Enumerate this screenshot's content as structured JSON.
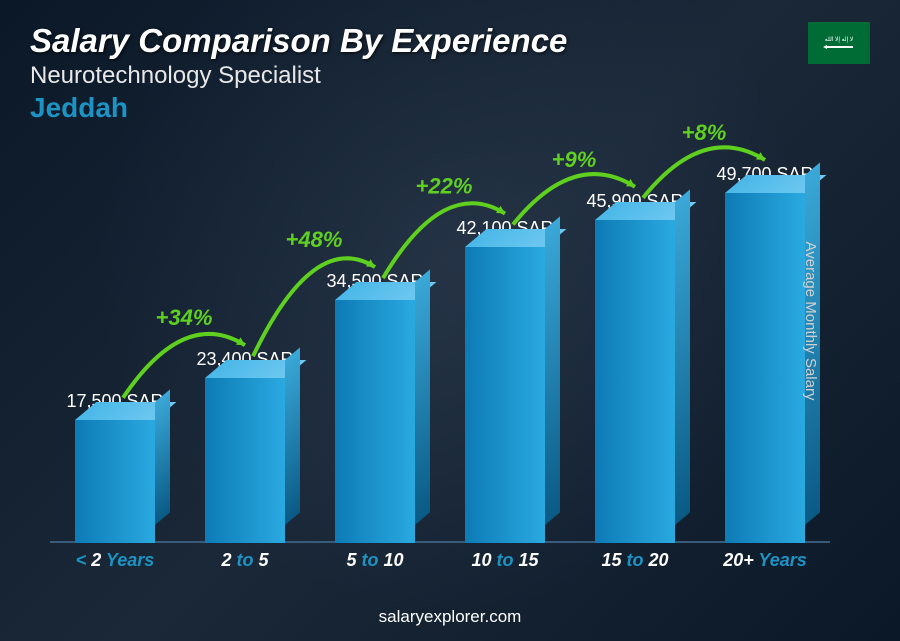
{
  "header": {
    "title": "Salary Comparison By Experience",
    "subtitle": "Neurotechnology Specialist",
    "location": "Jeddah"
  },
  "axis_label": "Average Monthly Salary",
  "footer": "salaryexplorer.com",
  "flag": {
    "country": "Saudi Arabia",
    "bg_color": "#006c35"
  },
  "chart": {
    "type": "bar",
    "currency": "SAR",
    "max_value": 49700,
    "bar_color_light": "#2aa9e0",
    "bar_color_dark": "#0d7bb5",
    "bar_top_color": "#6ec8f0",
    "bar_side_color": "#0a5a85",
    "increase_color": "#5fd01f",
    "label_color": "#1d93c4",
    "value_fontsize": 18,
    "label_fontsize": 18,
    "increase_fontsize": 22,
    "bars": [
      {
        "category_prefix": "< ",
        "category_num": "2",
        "category_suffix": " Years",
        "value": 17500,
        "value_label": "17,500 SAR",
        "increase": null
      },
      {
        "category_prefix": "",
        "category_num": "2",
        "category_mid": " to ",
        "category_num2": "5",
        "category_suffix": "",
        "value": 23400,
        "value_label": "23,400 SAR",
        "increase": "+34%"
      },
      {
        "category_prefix": "",
        "category_num": "5",
        "category_mid": " to ",
        "category_num2": "10",
        "category_suffix": "",
        "value": 34500,
        "value_label": "34,500 SAR",
        "increase": "+48%"
      },
      {
        "category_prefix": "",
        "category_num": "10",
        "category_mid": " to ",
        "category_num2": "15",
        "category_suffix": "",
        "value": 42100,
        "value_label": "42,100 SAR",
        "increase": "+22%"
      },
      {
        "category_prefix": "",
        "category_num": "15",
        "category_mid": " to ",
        "category_num2": "20",
        "category_suffix": "",
        "value": 45900,
        "value_label": "45,900 SAR",
        "increase": "+9%"
      },
      {
        "category_prefix": "",
        "category_num": "20+",
        "category_suffix": " Years",
        "value": 49700,
        "value_label": "49,700 SAR",
        "increase": "+8%"
      }
    ]
  }
}
